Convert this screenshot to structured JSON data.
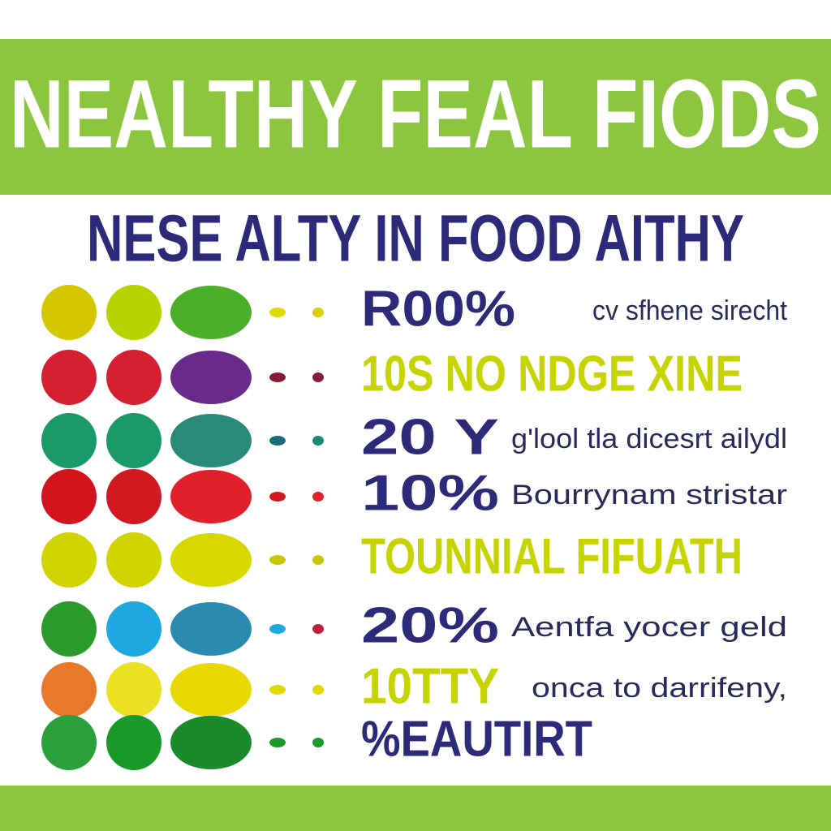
{
  "header": {
    "title": "NEALTHY FEAL FIODS",
    "subtitle": "NESE ALTY IN FOOD AITHY"
  },
  "rows": [
    {
      "label": "R00%",
      "description": "cv sfhene sirecht"
    },
    {
      "label": "10S NO NDGE XINE"
    },
    {
      "label": "20 Y",
      "description": "g'lool tla dicesrt ailydl"
    },
    {
      "label": "10%",
      "description": "Bourrynam stristar"
    },
    {
      "label": "TOUNNIAL FIFUATH"
    },
    {
      "label": "20%",
      "description": "Aentfa yocer geld"
    },
    {
      "label": "10TTY",
      "description": "onca to darrifeny,"
    },
    {
      "label": "%EAUTIRT"
    }
  ]
}
